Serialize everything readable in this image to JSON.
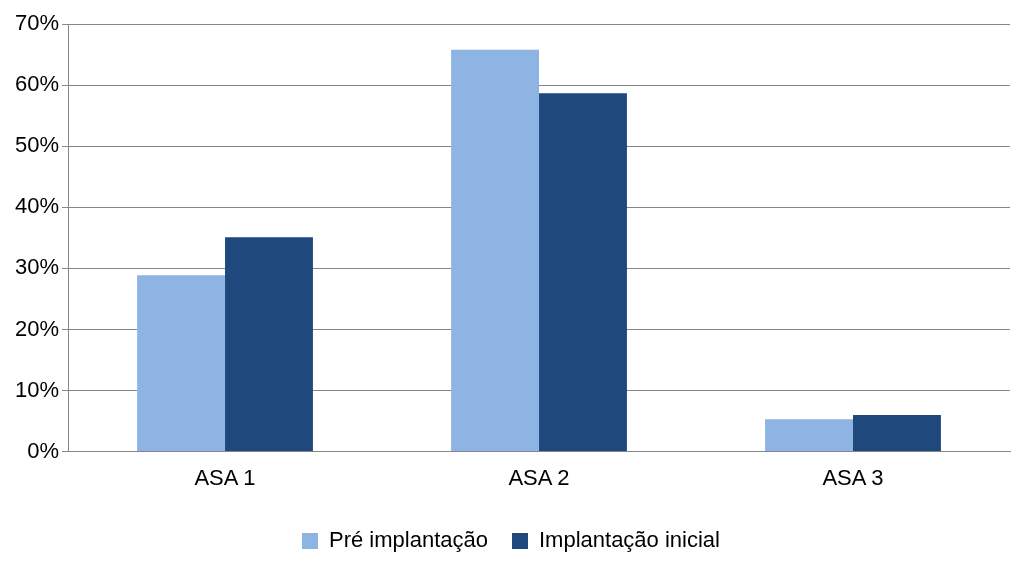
{
  "chart_data": {
    "type": "bar",
    "categories": [
      "ASA 1",
      "ASA 2",
      "ASA 3"
    ],
    "series": [
      {
        "name": "Pré implantação",
        "color": "#8eb4e3",
        "values": [
          28.9,
          65.8,
          5.3
        ]
      },
      {
        "name": "Implantação inicial",
        "color": "#1f497d",
        "values": [
          35.1,
          58.7,
          6.0
        ]
      }
    ],
    "ylim": [
      0,
      70
    ],
    "yticks": [
      {
        "value": 0,
        "label": "0%"
      },
      {
        "value": 10,
        "label": "10%"
      },
      {
        "value": 20,
        "label": "20%"
      },
      {
        "value": 30,
        "label": "30%"
      },
      {
        "value": 40,
        "label": "40%"
      },
      {
        "value": 50,
        "label": "50%"
      },
      {
        "value": 60,
        "label": "60%"
      },
      {
        "value": 70,
        "label": "70%"
      }
    ],
    "grid": "y",
    "legend": "bottom"
  }
}
